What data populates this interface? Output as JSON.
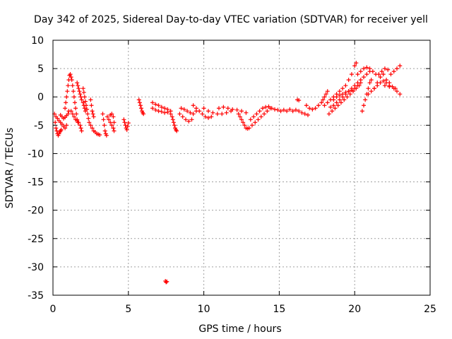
{
  "chart_data": {
    "type": "scatter",
    "title": "Day 342 of 2025, Sidereal Day-to-day VTEC variation (SDTVAR) for receiver yell",
    "xlabel": "GPS time / hours",
    "ylabel": "SDTVAR / TECUs",
    "xlim": [
      0,
      25
    ],
    "ylim": [
      -35,
      10
    ],
    "x_ticks": [
      "0",
      "5",
      "10",
      "15",
      "20",
      "25"
    ],
    "y_ticks": [
      "10",
      "5",
      "0",
      "-5",
      "-10",
      "-15",
      "-20",
      "-25",
      "-30",
      "-35"
    ],
    "grid": true,
    "marker": "+",
    "series": [
      {
        "name": "SDTVAR",
        "color": "#ff0000",
        "points": [
          [
            0.1,
            -3.0
          ],
          [
            0.15,
            -4.5
          ],
          [
            0.2,
            -5.5
          ],
          [
            0.25,
            -6.0
          ],
          [
            0.3,
            -6.5
          ],
          [
            0.35,
            -6.8
          ],
          [
            0.4,
            -6.5
          ],
          [
            0.45,
            -6.2
          ],
          [
            0.5,
            -6.0
          ],
          [
            0.55,
            -5.8
          ],
          [
            0.2,
            -3.5
          ],
          [
            0.3,
            -3.8
          ],
          [
            0.4,
            -4.2
          ],
          [
            0.5,
            -4.5
          ],
          [
            0.6,
            -4.8
          ],
          [
            0.7,
            -5.2
          ],
          [
            0.8,
            -5.5
          ],
          [
            0.9,
            -5.0
          ],
          [
            0.5,
            -3.2
          ],
          [
            0.6,
            -3.5
          ],
          [
            0.7,
            -3.8
          ],
          [
            0.8,
            -3.6
          ],
          [
            0.9,
            -3.3
          ],
          [
            1.0,
            -3.0
          ],
          [
            1.05,
            -2.5
          ],
          [
            0.8,
            -2.0
          ],
          [
            0.85,
            -1.0
          ],
          [
            0.9,
            0.0
          ],
          [
            0.95,
            1.0
          ],
          [
            1.0,
            2.0
          ],
          [
            1.05,
            3.0
          ],
          [
            1.1,
            3.8
          ],
          [
            1.15,
            4.0
          ],
          [
            1.2,
            3.5
          ],
          [
            1.25,
            3.0
          ],
          [
            1.3,
            2.0
          ],
          [
            1.35,
            1.0
          ],
          [
            1.4,
            0.0
          ],
          [
            1.45,
            -1.0
          ],
          [
            1.5,
            -2.0
          ],
          [
            1.55,
            -3.0
          ],
          [
            1.6,
            -4.0
          ],
          [
            1.65,
            -4.5
          ],
          [
            1.2,
            -2.5
          ],
          [
            1.3,
            -3.0
          ],
          [
            1.4,
            -3.5
          ],
          [
            1.5,
            -4.0
          ],
          [
            1.6,
            -4.2
          ],
          [
            1.7,
            -4.5
          ],
          [
            1.8,
            -5.0
          ],
          [
            1.85,
            -5.5
          ],
          [
            1.9,
            -6.0
          ],
          [
            1.6,
            2.5
          ],
          [
            1.65,
            2.0
          ],
          [
            1.7,
            1.5
          ],
          [
            1.75,
            1.0
          ],
          [
            1.8,
            0.5
          ],
          [
            1.85,
            0.0
          ],
          [
            1.9,
            -0.5
          ],
          [
            2.0,
            -1.0
          ],
          [
            2.05,
            -1.5
          ],
          [
            2.1,
            -2.0
          ],
          [
            2.15,
            -2.5
          ],
          [
            2.0,
            1.5
          ],
          [
            2.05,
            0.8
          ],
          [
            2.1,
            0.0
          ],
          [
            2.15,
            -0.8
          ],
          [
            2.2,
            -1.5
          ],
          [
            2.25,
            -2.2
          ],
          [
            2.3,
            -3.0
          ],
          [
            2.35,
            -3.8
          ],
          [
            2.5,
            -0.5
          ],
          [
            2.55,
            -1.5
          ],
          [
            2.6,
            -2.5
          ],
          [
            2.65,
            -3.0
          ],
          [
            2.7,
            -3.5
          ],
          [
            2.4,
            -4.5
          ],
          [
            2.5,
            -5.0
          ],
          [
            2.6,
            -5.5
          ],
          [
            2.7,
            -6.0
          ],
          [
            2.8,
            -6.2
          ],
          [
            2.9,
            -6.5
          ],
          [
            3.0,
            -6.6
          ],
          [
            3.1,
            -6.7
          ],
          [
            3.3,
            -3.0
          ],
          [
            3.35,
            -4.0
          ],
          [
            3.4,
            -5.0
          ],
          [
            3.45,
            -6.0
          ],
          [
            3.5,
            -6.5
          ],
          [
            3.55,
            -6.8
          ],
          [
            3.6,
            -3.5
          ],
          [
            3.7,
            -4.0
          ],
          [
            3.8,
            -4.5
          ],
          [
            3.9,
            -5.0
          ],
          [
            4.0,
            -5.5
          ],
          [
            4.05,
            -6.0
          ],
          [
            3.8,
            -3.2
          ],
          [
            3.9,
            -3.0
          ],
          [
            4.0,
            -3.5
          ],
          [
            4.05,
            -4.5
          ],
          [
            4.7,
            -4.0
          ],
          [
            4.75,
            -4.5
          ],
          [
            4.8,
            -5.0
          ],
          [
            4.85,
            -5.5
          ],
          [
            4.9,
            -5.8
          ],
          [
            4.95,
            -5.2
          ],
          [
            5.0,
            -4.6
          ],
          [
            5.7,
            -0.5
          ],
          [
            5.75,
            -1.0
          ],
          [
            5.8,
            -1.5
          ],
          [
            5.85,
            -2.0
          ],
          [
            5.9,
            -2.5
          ],
          [
            5.95,
            -2.8
          ],
          [
            6.0,
            -3.0
          ],
          [
            6.6,
            -1.0
          ],
          [
            6.8,
            -1.3
          ],
          [
            7.0,
            -1.5
          ],
          [
            7.2,
            -1.8
          ],
          [
            7.4,
            -2.0
          ],
          [
            7.6,
            -2.2
          ],
          [
            7.8,
            -2.5
          ],
          [
            6.6,
            -2.0
          ],
          [
            6.8,
            -2.3
          ],
          [
            7.0,
            -2.5
          ],
          [
            7.2,
            -2.6
          ],
          [
            7.4,
            -2.8
          ],
          [
            7.6,
            -2.7
          ],
          [
            7.8,
            -3.0
          ],
          [
            7.45,
            -32.5
          ],
          [
            7.5,
            -32.7
          ],
          [
            7.55,
            -32.6
          ],
          [
            7.9,
            -3.5
          ],
          [
            7.95,
            -4.0
          ],
          [
            8.0,
            -4.5
          ],
          [
            8.05,
            -5.0
          ],
          [
            8.1,
            -5.5
          ],
          [
            8.15,
            -5.8
          ],
          [
            8.2,
            -6.0
          ],
          [
            8.4,
            -3.0
          ],
          [
            8.6,
            -3.5
          ],
          [
            8.8,
            -4.0
          ],
          [
            9.0,
            -4.3
          ],
          [
            9.2,
            -4.0
          ],
          [
            8.5,
            -2.0
          ],
          [
            8.7,
            -2.2
          ],
          [
            8.9,
            -2.5
          ],
          [
            9.1,
            -2.8
          ],
          [
            9.3,
            -3.0
          ],
          [
            9.5,
            -2.5
          ],
          [
            9.3,
            -1.5
          ],
          [
            9.5,
            -2.0
          ],
          [
            9.7,
            -2.5
          ],
          [
            9.9,
            -3.0
          ],
          [
            10.1,
            -3.5
          ],
          [
            10.3,
            -3.7
          ],
          [
            10.5,
            -3.5
          ],
          [
            10.0,
            -2.0
          ],
          [
            10.3,
            -2.5
          ],
          [
            10.6,
            -2.8
          ],
          [
            10.9,
            -3.0
          ],
          [
            11.2,
            -3.0
          ],
          [
            11.5,
            -2.8
          ],
          [
            11.8,
            -2.5
          ],
          [
            11.0,
            -2.0
          ],
          [
            11.3,
            -1.8
          ],
          [
            11.6,
            -2.0
          ],
          [
            11.9,
            -2.2
          ],
          [
            12.2,
            -2.3
          ],
          [
            12.5,
            -2.5
          ],
          [
            12.8,
            -2.8
          ],
          [
            12.3,
            -3.0
          ],
          [
            12.4,
            -3.5
          ],
          [
            12.5,
            -4.0
          ],
          [
            12.6,
            -4.5
          ],
          [
            12.7,
            -5.0
          ],
          [
            12.8,
            -5.5
          ],
          [
            12.9,
            -5.6
          ],
          [
            13.0,
            -5.5
          ],
          [
            13.2,
            -5.0
          ],
          [
            13.4,
            -4.5
          ],
          [
            13.6,
            -4.0
          ],
          [
            13.8,
            -3.5
          ],
          [
            14.0,
            -3.0
          ],
          [
            14.2,
            -2.5
          ],
          [
            14.4,
            -2.0
          ],
          [
            13.1,
            -4.0
          ],
          [
            13.3,
            -3.5
          ],
          [
            13.5,
            -3.0
          ],
          [
            13.7,
            -2.5
          ],
          [
            13.9,
            -2.0
          ],
          [
            14.1,
            -1.8
          ],
          [
            14.3,
            -1.7
          ],
          [
            14.5,
            -2.0
          ],
          [
            14.7,
            -2.2
          ],
          [
            14.9,
            -2.3
          ],
          [
            15.1,
            -2.5
          ],
          [
            15.3,
            -2.3
          ],
          [
            15.5,
            -2.5
          ],
          [
            15.7,
            -2.2
          ],
          [
            15.9,
            -2.5
          ],
          [
            16.1,
            -2.3
          ],
          [
            16.3,
            -2.5
          ],
          [
            16.5,
            -2.8
          ],
          [
            16.7,
            -3.0
          ],
          [
            16.9,
            -3.2
          ],
          [
            16.2,
            -0.5
          ],
          [
            16.3,
            -0.6
          ],
          [
            16.8,
            -1.5
          ],
          [
            17.0,
            -2.0
          ],
          [
            17.2,
            -2.2
          ],
          [
            17.4,
            -2.0
          ],
          [
            17.6,
            -1.5
          ],
          [
            17.8,
            -1.0
          ],
          [
            17.9,
            -0.5
          ],
          [
            18.0,
            0.0
          ],
          [
            18.1,
            0.5
          ],
          [
            18.2,
            1.0
          ],
          [
            18.0,
            -1.5
          ],
          [
            18.2,
            -1.0
          ],
          [
            18.4,
            -0.5
          ],
          [
            18.6,
            0.0
          ],
          [
            18.8,
            0.5
          ],
          [
            19.0,
            1.0
          ],
          [
            19.2,
            1.5
          ],
          [
            19.4,
            2.0
          ],
          [
            19.6,
            3.0
          ],
          [
            19.8,
            4.0
          ],
          [
            20.0,
            5.5
          ],
          [
            20.1,
            6.0
          ],
          [
            18.4,
            -1.8
          ],
          [
            18.6,
            -1.5
          ],
          [
            18.8,
            -1.0
          ],
          [
            19.0,
            -0.5
          ],
          [
            19.2,
            0.0
          ],
          [
            19.4,
            0.5
          ],
          [
            19.6,
            1.0
          ],
          [
            19.8,
            1.5
          ],
          [
            20.0,
            2.0
          ],
          [
            20.2,
            2.5
          ],
          [
            20.4,
            3.0
          ],
          [
            20.6,
            3.5
          ],
          [
            20.8,
            4.0
          ],
          [
            21.0,
            4.5
          ],
          [
            18.6,
            -0.5
          ],
          [
            18.8,
            0.0
          ],
          [
            19.0,
            0.3
          ],
          [
            19.2,
            0.5
          ],
          [
            19.4,
            0.8
          ],
          [
            19.6,
            1.0
          ],
          [
            19.8,
            1.2
          ],
          [
            20.0,
            1.5
          ],
          [
            20.2,
            2.0
          ],
          [
            20.4,
            2.5
          ],
          [
            18.3,
            -3.0
          ],
          [
            18.5,
            -2.5
          ],
          [
            18.7,
            -2.0
          ],
          [
            18.9,
            -1.5
          ],
          [
            19.1,
            -1.0
          ],
          [
            19.3,
            -0.5
          ],
          [
            19.5,
            0.0
          ],
          [
            19.7,
            0.5
          ],
          [
            19.9,
            1.0
          ],
          [
            20.1,
            1.5
          ],
          [
            20.3,
            2.0
          ],
          [
            20.2,
            4.0
          ],
          [
            20.4,
            4.5
          ],
          [
            20.6,
            5.0
          ],
          [
            20.8,
            5.2
          ],
          [
            21.0,
            5.0
          ],
          [
            21.2,
            4.5
          ],
          [
            21.4,
            4.0
          ],
          [
            20.5,
            -2.5
          ],
          [
            20.6,
            -1.5
          ],
          [
            20.7,
            -0.5
          ],
          [
            20.8,
            0.5
          ],
          [
            20.9,
            1.5
          ],
          [
            21.0,
            2.5
          ],
          [
            21.1,
            3.0
          ],
          [
            20.9,
            0.5
          ],
          [
            21.1,
            1.0
          ],
          [
            21.3,
            1.5
          ],
          [
            21.5,
            2.0
          ],
          [
            21.7,
            2.5
          ],
          [
            21.9,
            2.8
          ],
          [
            22.1,
            3.0
          ],
          [
            22.3,
            2.5
          ],
          [
            21.3,
            1.5
          ],
          [
            21.5,
            2.5
          ],
          [
            21.7,
            3.5
          ],
          [
            21.9,
            4.0
          ],
          [
            22.1,
            2.5
          ],
          [
            22.3,
            2.0
          ],
          [
            22.5,
            1.8
          ],
          [
            22.7,
            1.5
          ],
          [
            21.6,
            4.0
          ],
          [
            21.8,
            4.5
          ],
          [
            22.0,
            5.0
          ],
          [
            22.2,
            4.8
          ],
          [
            22.4,
            4.0
          ],
          [
            22.6,
            4.5
          ],
          [
            22.8,
            5.0
          ],
          [
            23.0,
            5.5
          ],
          [
            22.0,
            2.0
          ],
          [
            22.3,
            1.8
          ],
          [
            22.6,
            1.5
          ],
          [
            22.8,
            1.0
          ],
          [
            23.0,
            0.5
          ]
        ]
      }
    ]
  }
}
